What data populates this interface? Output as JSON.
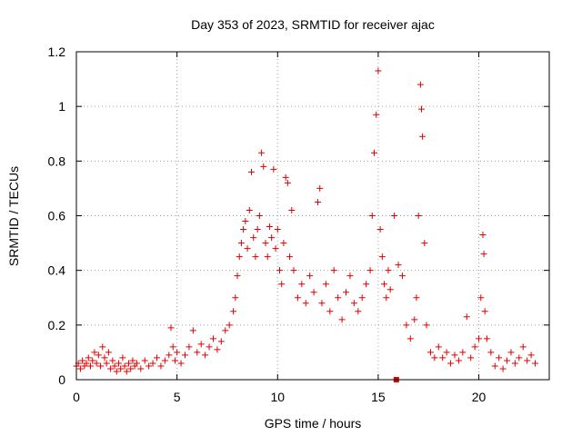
{
  "chart_data": {
    "type": "scatter",
    "title": "Day 353 of 2023, SRMTID for receiver ajac",
    "xlabel": "GPS time / hours",
    "ylabel": "SRMTID / TECUs",
    "xlim": [
      0,
      23.5
    ],
    "ylim": [
      0,
      1.2
    ],
    "x_ticks": [
      0,
      5,
      10,
      15,
      20
    ],
    "x_tick_labels": [
      "0",
      "5",
      "10",
      "15",
      "20"
    ],
    "y_ticks": [
      0,
      0.2,
      0.4,
      0.6,
      0.8,
      1,
      1.2
    ],
    "y_tick_labels": [
      "0",
      "0.2",
      "0.4",
      "0.6",
      "0.8",
      "1",
      "1.2"
    ],
    "grid": true,
    "marker": "+",
    "color": "#e00000",
    "series": [
      {
        "name": "SRMTID",
        "points": [
          [
            0.0,
            0.05
          ],
          [
            0.1,
            0.06
          ],
          [
            0.2,
            0.04
          ],
          [
            0.3,
            0.07
          ],
          [
            0.4,
            0.05
          ],
          [
            0.5,
            0.06
          ],
          [
            0.6,
            0.08
          ],
          [
            0.7,
            0.05
          ],
          [
            0.8,
            0.07
          ],
          [
            0.9,
            0.1
          ],
          [
            1.0,
            0.06
          ],
          [
            1.1,
            0.09
          ],
          [
            1.2,
            0.05
          ],
          [
            1.3,
            0.12
          ],
          [
            1.4,
            0.08
          ],
          [
            1.5,
            0.06
          ],
          [
            1.6,
            0.1
          ],
          [
            1.7,
            0.04
          ],
          [
            1.8,
            0.07
          ],
          [
            1.9,
            0.05
          ],
          [
            2.0,
            0.03
          ],
          [
            2.1,
            0.06
          ],
          [
            2.2,
            0.04
          ],
          [
            2.3,
            0.08
          ],
          [
            2.4,
            0.05
          ],
          [
            2.5,
            0.03
          ],
          [
            2.6,
            0.06
          ],
          [
            2.7,
            0.04
          ],
          [
            2.8,
            0.07
          ],
          [
            2.9,
            0.05
          ],
          [
            3.0,
            0.06
          ],
          [
            3.2,
            0.04
          ],
          [
            3.4,
            0.07
          ],
          [
            3.6,
            0.05
          ],
          [
            3.8,
            0.06
          ],
          [
            4.0,
            0.08
          ],
          [
            4.2,
            0.05
          ],
          [
            4.4,
            0.07
          ],
          [
            4.6,
            0.09
          ],
          [
            4.7,
            0.19
          ],
          [
            4.8,
            0.12
          ],
          [
            4.9,
            0.07
          ],
          [
            5.0,
            0.1
          ],
          [
            5.2,
            0.06
          ],
          [
            5.4,
            0.09
          ],
          [
            5.6,
            0.12
          ],
          [
            5.8,
            0.18
          ],
          [
            6.0,
            0.1
          ],
          [
            6.2,
            0.13
          ],
          [
            6.4,
            0.09
          ],
          [
            6.6,
            0.12
          ],
          [
            6.8,
            0.15
          ],
          [
            7.0,
            0.11
          ],
          [
            7.2,
            0.14
          ],
          [
            7.4,
            0.18
          ],
          [
            7.6,
            0.2
          ],
          [
            7.8,
            0.25
          ],
          [
            7.9,
            0.3
          ],
          [
            8.0,
            0.38
          ],
          [
            8.1,
            0.45
          ],
          [
            8.2,
            0.5
          ],
          [
            8.3,
            0.55
          ],
          [
            8.4,
            0.58
          ],
          [
            8.5,
            0.48
          ],
          [
            8.6,
            0.62
          ],
          [
            8.7,
            0.76
          ],
          [
            8.8,
            0.52
          ],
          [
            8.9,
            0.45
          ],
          [
            9.0,
            0.55
          ],
          [
            9.1,
            0.6
          ],
          [
            9.2,
            0.83
          ],
          [
            9.3,
            0.78
          ],
          [
            9.4,
            0.5
          ],
          [
            9.5,
            0.45
          ],
          [
            9.6,
            0.56
          ],
          [
            9.7,
            0.52
          ],
          [
            9.8,
            0.77
          ],
          [
            9.9,
            0.48
          ],
          [
            10.0,
            0.55
          ],
          [
            10.1,
            0.4
          ],
          [
            10.2,
            0.35
          ],
          [
            10.3,
            0.5
          ],
          [
            10.4,
            0.74
          ],
          [
            10.5,
            0.72
          ],
          [
            10.6,
            0.45
          ],
          [
            10.7,
            0.62
          ],
          [
            10.8,
            0.4
          ],
          [
            11.0,
            0.3
          ],
          [
            11.2,
            0.35
          ],
          [
            11.4,
            0.28
          ],
          [
            11.6,
            0.38
          ],
          [
            11.8,
            0.32
          ],
          [
            12.0,
            0.65
          ],
          [
            12.1,
            0.7
          ],
          [
            12.2,
            0.28
          ],
          [
            12.4,
            0.35
          ],
          [
            12.6,
            0.25
          ],
          [
            12.8,
            0.4
          ],
          [
            13.0,
            0.3
          ],
          [
            13.2,
            0.22
          ],
          [
            13.4,
            0.32
          ],
          [
            13.6,
            0.38
          ],
          [
            13.8,
            0.28
          ],
          [
            14.0,
            0.25
          ],
          [
            14.2,
            0.3
          ],
          [
            14.4,
            0.35
          ],
          [
            14.6,
            0.4
          ],
          [
            14.7,
            0.6
          ],
          [
            14.8,
            0.83
          ],
          [
            14.9,
            0.97
          ],
          [
            15.0,
            1.13
          ],
          [
            15.1,
            0.55
          ],
          [
            15.2,
            0.45
          ],
          [
            15.3,
            0.35
          ],
          [
            15.4,
            0.3
          ],
          [
            15.5,
            0.4
          ],
          [
            15.6,
            0.33
          ],
          [
            15.8,
            0.6
          ],
          [
            16.0,
            0.42
          ],
          [
            16.2,
            0.38
          ],
          [
            16.4,
            0.2
          ],
          [
            16.6,
            0.15
          ],
          [
            16.8,
            0.22
          ],
          [
            16.9,
            0.3
          ],
          [
            17.0,
            0.6
          ],
          [
            17.1,
            1.08
          ],
          [
            17.15,
            0.99
          ],
          [
            17.2,
            0.89
          ],
          [
            17.3,
            0.5
          ],
          [
            17.4,
            0.2
          ],
          [
            17.6,
            0.1
          ],
          [
            17.8,
            0.08
          ],
          [
            18.0,
            0.12
          ],
          [
            18.2,
            0.08
          ],
          [
            18.4,
            0.1
          ],
          [
            18.6,
            0.06
          ],
          [
            18.8,
            0.09
          ],
          [
            19.0,
            0.07
          ],
          [
            19.2,
            0.1
          ],
          [
            19.4,
            0.23
          ],
          [
            19.6,
            0.08
          ],
          [
            19.8,
            0.12
          ],
          [
            20.0,
            0.15
          ],
          [
            20.1,
            0.3
          ],
          [
            20.2,
            0.53
          ],
          [
            20.25,
            0.46
          ],
          [
            20.3,
            0.25
          ],
          [
            20.4,
            0.15
          ],
          [
            20.6,
            0.1
          ],
          [
            20.8,
            0.05
          ],
          [
            21.0,
            0.08
          ],
          [
            21.2,
            0.04
          ],
          [
            21.4,
            0.07
          ],
          [
            21.6,
            0.1
          ],
          [
            21.8,
            0.06
          ],
          [
            22.0,
            0.08
          ],
          [
            22.2,
            0.12
          ],
          [
            22.4,
            0.07
          ],
          [
            22.6,
            0.09
          ],
          [
            22.8,
            0.06
          ]
        ]
      }
    ],
    "outlier_marker": {
      "x": 15.9,
      "y": 0.0
    }
  }
}
